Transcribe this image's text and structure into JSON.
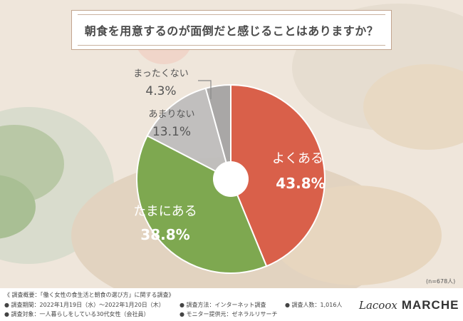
{
  "chart_data": {
    "type": "pie",
    "title": "朝食を用意するのが面倒だと感じることはありますか？",
    "note": "(n=678人)",
    "slices": [
      {
        "label": "よくある",
        "value": 43.8,
        "value_text": "43.8%",
        "color": "#d9604a"
      },
      {
        "label": "たまにある",
        "value": 38.8,
        "value_text": "38.8%",
        "color": "#7ea850"
      },
      {
        "label": "あまりない",
        "value": 13.1,
        "value_text": "13.1%",
        "color": "#bdbcbc"
      },
      {
        "label": "まったくない",
        "value": 4.3,
        "value_text": "4.3%",
        "color": "#a3a2a2"
      }
    ]
  },
  "footer": {
    "line1": "《 調査概要：「働く女性の食生活と朝食の選び方」に関する調査》",
    "period": "● 調査期間：2022年1月19日（水）〜2022年1月20日（木）",
    "method": "● 調査方法：インターネット調査",
    "count": "● 調査人数：1,016人",
    "target": "● 調査対象：一人暮らしをしている30代女性（会社員）",
    "provider": "● モニター提供元：ゼネラルリサーチ"
  },
  "brand": {
    "script": "Lacoox",
    "bold": "MARCHE"
  }
}
